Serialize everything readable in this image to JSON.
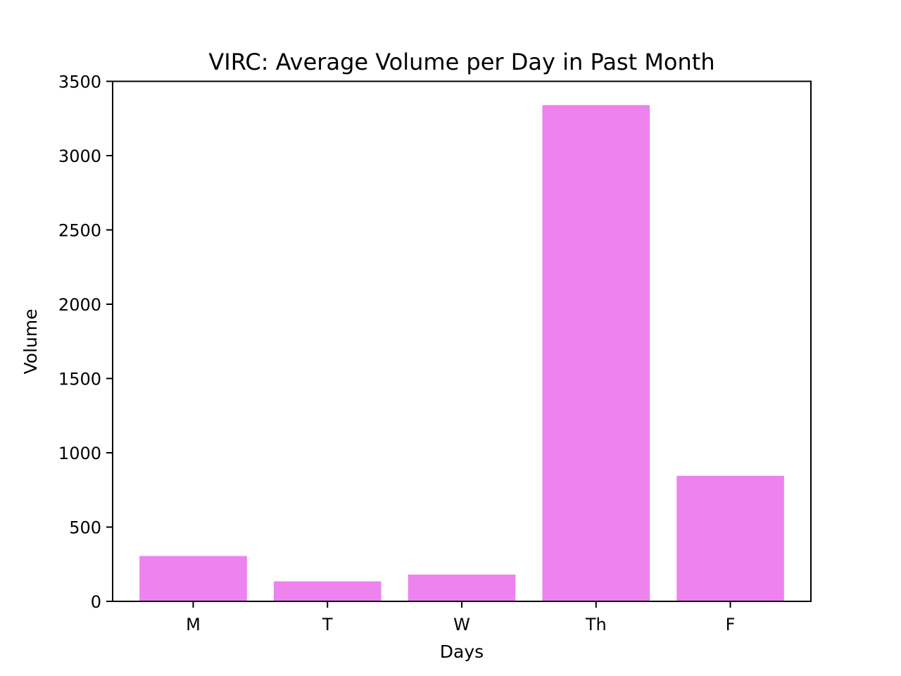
{
  "chart_data": {
    "type": "bar",
    "title": "VIRC: Average Volume per Day in Past Month",
    "xlabel": "Days",
    "ylabel": "Volume",
    "categories": [
      "M",
      "T",
      "W",
      "Th",
      "F"
    ],
    "values": [
      305,
      135,
      180,
      3340,
      845
    ],
    "ylim": [
      0,
      3500
    ],
    "yticks": [
      0,
      500,
      1000,
      1500,
      2000,
      2500,
      3000,
      3500
    ],
    "bar_color": "#ee82ee",
    "grid": false,
    "legend": "none"
  }
}
